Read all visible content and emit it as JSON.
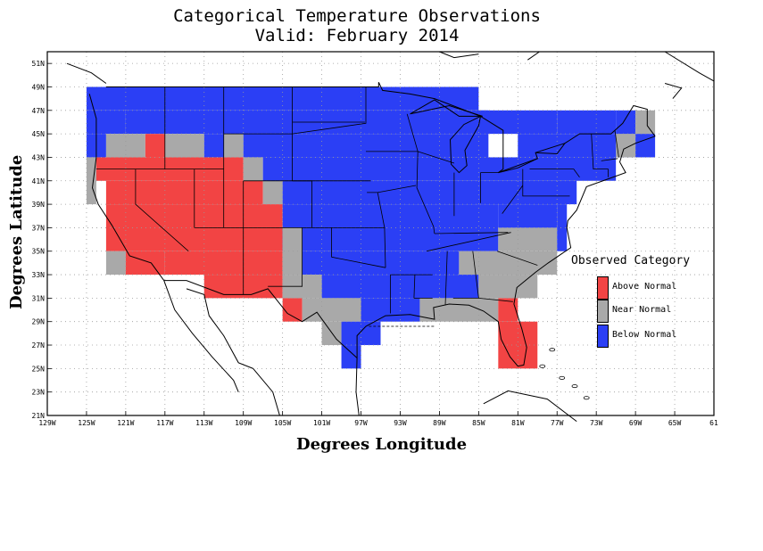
{
  "title_line1": "Categorical Temperature Observations",
  "title_line2": "Valid: February 2014",
  "x_axis_label": "Degrees Longitude",
  "y_axis_label": "Degrees Latitude",
  "legend": {
    "title": "Observed Category",
    "items": [
      {
        "label": "Above Normal",
        "color": "#f24444"
      },
      {
        "label": "Near Normal",
        "color": "#a9a9a9"
      },
      {
        "label": "Below Normal",
        "color": "#2b3ff5"
      }
    ]
  },
  "map_data": {
    "lon_range": [
      -129,
      -61
    ],
    "lat_range": [
      21,
      52
    ],
    "x_ticks": [
      "129W",
      "125W",
      "121W",
      "117W",
      "113W",
      "109W",
      "105W",
      "101W",
      "97W",
      "93W",
      "89W",
      "85W",
      "81W",
      "77W",
      "73W",
      "69W",
      "65W",
      "61"
    ],
    "y_ticks": [
      "21N",
      "23N",
      "25N",
      "27N",
      "29N",
      "31N",
      "33N",
      "35N",
      "37N",
      "39N",
      "41N",
      "43N",
      "45N",
      "47N",
      "49N",
      "51N"
    ]
  }
}
